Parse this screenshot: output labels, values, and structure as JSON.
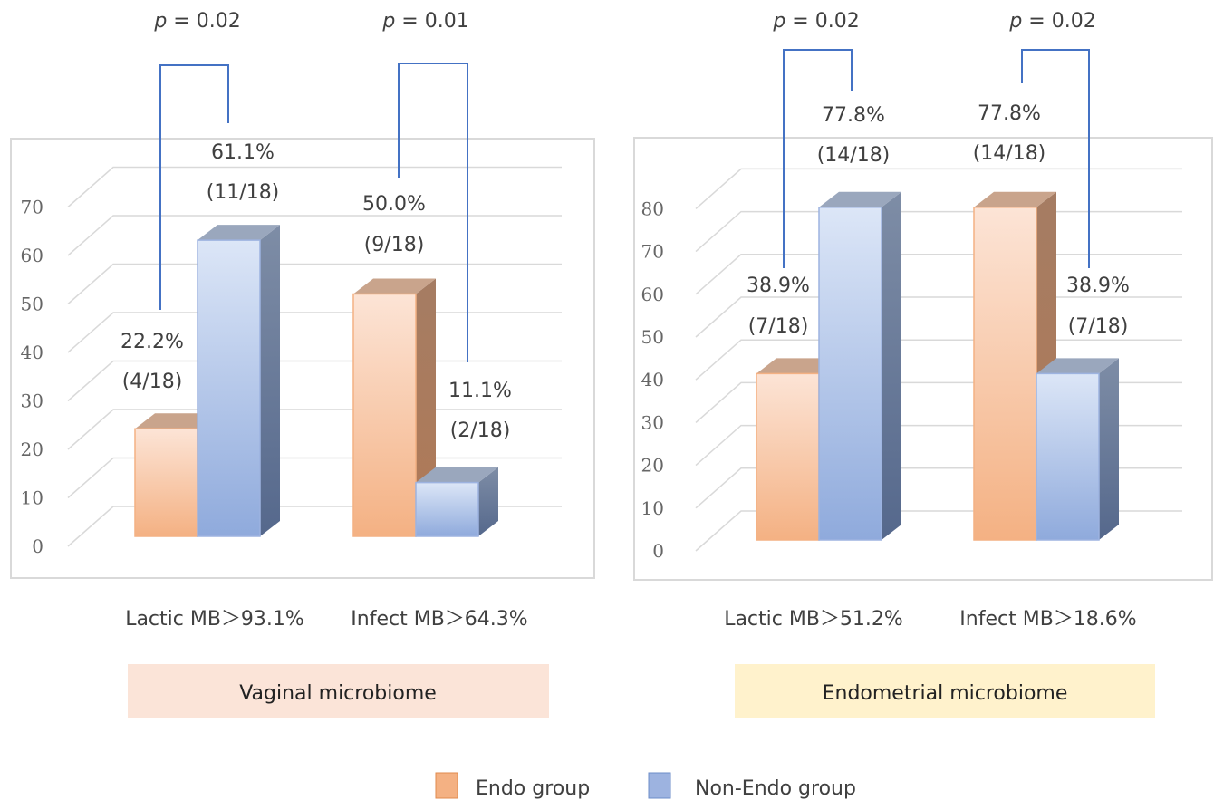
{
  "chart_data": [
    {
      "type": "bar",
      "title": "Vaginal microbiome",
      "categories": [
        "Lactic MB＞93.1%",
        "Infect MB＞64.3%"
      ],
      "series": [
        {
          "name": "Endo group",
          "values": [
            22.2,
            50.0
          ]
        },
        {
          "name": "Non-Endo group",
          "values": [
            61.1,
            11.1
          ]
        }
      ],
      "data_labels": [
        [
          "22.2%",
          "(4/18)",
          "61.1%",
          "(11/18)"
        ],
        [
          "50.0%",
          "(9/18)",
          "11.1%",
          "(2/18)"
        ]
      ],
      "p_values": [
        "= 0.02",
        "= 0.01"
      ],
      "yticks": [
        "0",
        "10",
        "20",
        "30",
        "40",
        "50",
        "60",
        "70"
      ],
      "ylim": [
        0,
        70
      ],
      "grid": true,
      "colors": {
        "endo": "#F4B183",
        "non_endo": "#9DB3E0"
      }
    },
    {
      "type": "bar",
      "title": "Endometrial microbiome",
      "categories": [
        "Lactic MB＞51.2%",
        "Infect MB＞18.6%"
      ],
      "series": [
        {
          "name": "Endo group",
          "values": [
            38.9,
            77.8
          ]
        },
        {
          "name": "Non-Endo group",
          "values": [
            77.8,
            38.9
          ]
        }
      ],
      "data_labels": [
        [
          "38.9%",
          "(7/18)",
          "77.8%",
          "(14/18)"
        ],
        [
          "77.8%",
          "(14/18)",
          "38.9%",
          "(7/18)"
        ]
      ],
      "p_values": [
        "= 0.02",
        "= 0.02"
      ],
      "yticks": [
        "0",
        "10",
        "20",
        "30",
        "40",
        "50",
        "60",
        "70",
        "80"
      ],
      "ylim": [
        0,
        80
      ],
      "grid": true,
      "colors": {
        "endo": "#F4B183",
        "non_endo": "#9DB3E0"
      }
    }
  ],
  "p_symbol": "p",
  "legend": {
    "position": "bottom-center",
    "items": [
      {
        "label": "Endo group",
        "color": "#F4B183"
      },
      {
        "label": "Non-Endo group",
        "color": "#9DB3E0"
      }
    ]
  },
  "colors": {
    "bracket": "#4472C4",
    "vaginal_box": "#FBE4D8",
    "endometrial_box": "#FFF2CC"
  }
}
